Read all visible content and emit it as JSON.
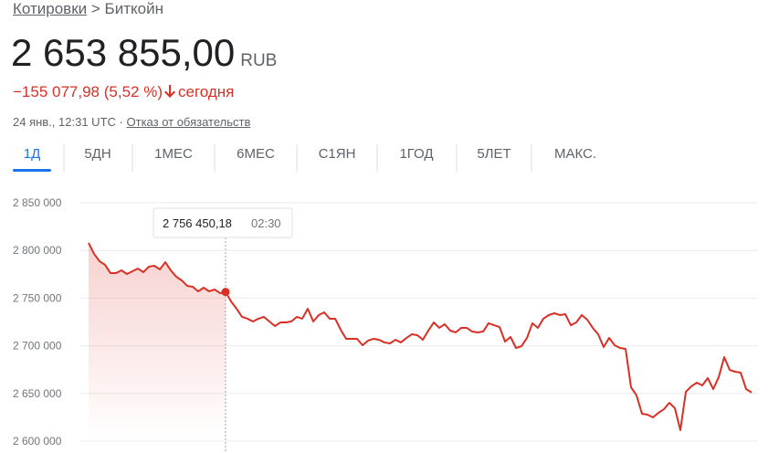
{
  "breadcrumb": {
    "link": "Котировки",
    "separator": ">",
    "current": "Биткойн"
  },
  "price": {
    "value": "2 653 855,00",
    "currency": "RUB"
  },
  "change": {
    "amount": "−155 077,98",
    "percent": "(5,52 %)",
    "period": "сегодня"
  },
  "timestamp": "24 янв., 12:31 UTC",
  "separator": "·",
  "disclaimer": "Отказ от обязательств",
  "tabs": [
    "1Д",
    "5ДН",
    "1МЕС",
    "6МЕС",
    "С1ЯН",
    "1ГОД",
    "5ЛЕТ",
    "МАКС."
  ],
  "active_tab": "1Д",
  "chart_data": {
    "type": "line",
    "series": [
      {
        "name": "Биткойн",
        "color": "#d93025",
        "values": [
          2807900,
          2796400,
          2788700,
          2784900,
          2776200,
          2776200,
          2779100,
          2775300,
          2778200,
          2781000,
          2777200,
          2783000,
          2783900,
          2780100,
          2787700,
          2779100,
          2772400,
          2768600,
          2762800,
          2761900,
          2757100,
          2760900,
          2757100,
          2759000,
          2755200,
          2756450.18,
          2746500,
          2738900,
          2730300,
          2728400,
          2725500,
          2728400,
          2730300,
          2725500,
          2720700,
          2724500,
          2724500,
          2725500,
          2730300,
          2728400,
          2738900,
          2725500,
          2732200,
          2735100,
          2728400,
          2728400,
          2716900,
          2707300,
          2707300,
          2707300,
          2700600,
          2705400,
          2707300,
          2706300,
          2703500,
          2702500,
          2706300,
          2703500,
          2708200,
          2712100,
          2711100,
          2706300,
          2715900,
          2724500,
          2718800,
          2722600,
          2715900,
          2714000,
          2718800,
          2718800,
          2714900,
          2714000,
          2714900,
          2723600,
          2721600,
          2719700,
          2704400,
          2709200,
          2697700,
          2699600,
          2708200,
          2723600,
          2718800,
          2728400,
          2732200,
          2734100,
          2732200,
          2733100,
          2721600,
          2724500,
          2732200,
          2727400,
          2718800,
          2712100,
          2698700,
          2708200,
          2700600,
          2697700,
          2696700,
          2656500,
          2647900,
          2628700,
          2627800,
          2624900,
          2629700,
          2633500,
          2640200,
          2634500,
          2611500,
          2651700,
          2657500,
          2661300,
          2658400,
          2666100,
          2654600,
          2667100,
          2688100,
          2674700,
          2672800,
          2671800,
          2654600,
          2651000
        ]
      }
    ],
    "ylim": [
      2600000,
      2850000
    ],
    "yticks": [
      {
        "value": 2600000,
        "label": "2 600 000"
      },
      {
        "value": 2650000,
        "label": "2 650 000"
      },
      {
        "value": 2700000,
        "label": "2 700 000"
      },
      {
        "value": 2750000,
        "label": "2 750 000"
      },
      {
        "value": 2800000,
        "label": "2 800 000"
      },
      {
        "value": 2850000,
        "label": "2 850 000"
      }
    ],
    "grid": true,
    "tooltip": {
      "value": 2756450.18,
      "label": "2 756 450,18",
      "time": "02:30"
    }
  }
}
